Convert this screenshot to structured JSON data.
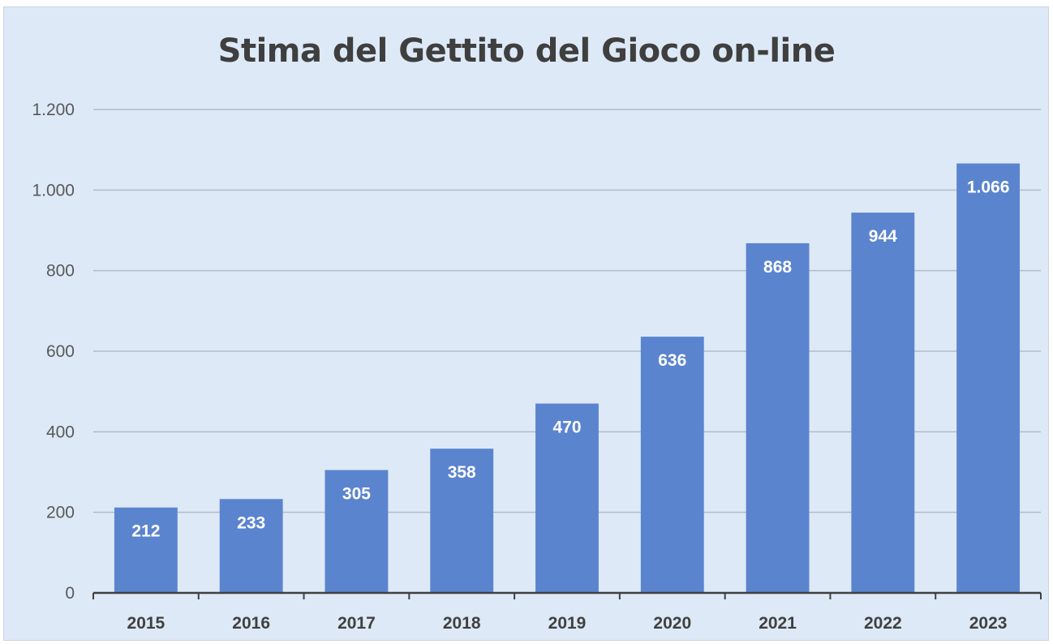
{
  "chart_data": {
    "type": "bar",
    "title": "Stima del Gettito del Gioco on-line",
    "categories": [
      "2015",
      "2016",
      "2017",
      "2018",
      "2019",
      "2020",
      "2021",
      "2022",
      "2023"
    ],
    "values": [
      212,
      233,
      305,
      358,
      470,
      636,
      868,
      944,
      1066
    ],
    "value_labels": [
      "212",
      "233",
      "305",
      "358",
      "470",
      "636",
      "868",
      "944",
      "1.066"
    ],
    "ylim": [
      0,
      1200
    ],
    "yticks": [
      0,
      200,
      400,
      600,
      800,
      1000,
      1200
    ],
    "ytick_labels": [
      "0",
      "200",
      "400",
      "600",
      "800",
      "1.000",
      "1.200"
    ],
    "xlabel": "",
    "ylabel": "",
    "grid": true,
    "legend": "none",
    "colors": {
      "bar": "#5b84cf",
      "grid": "#b4bcc5",
      "background": "#dde9f6",
      "axis": "#404040"
    }
  }
}
